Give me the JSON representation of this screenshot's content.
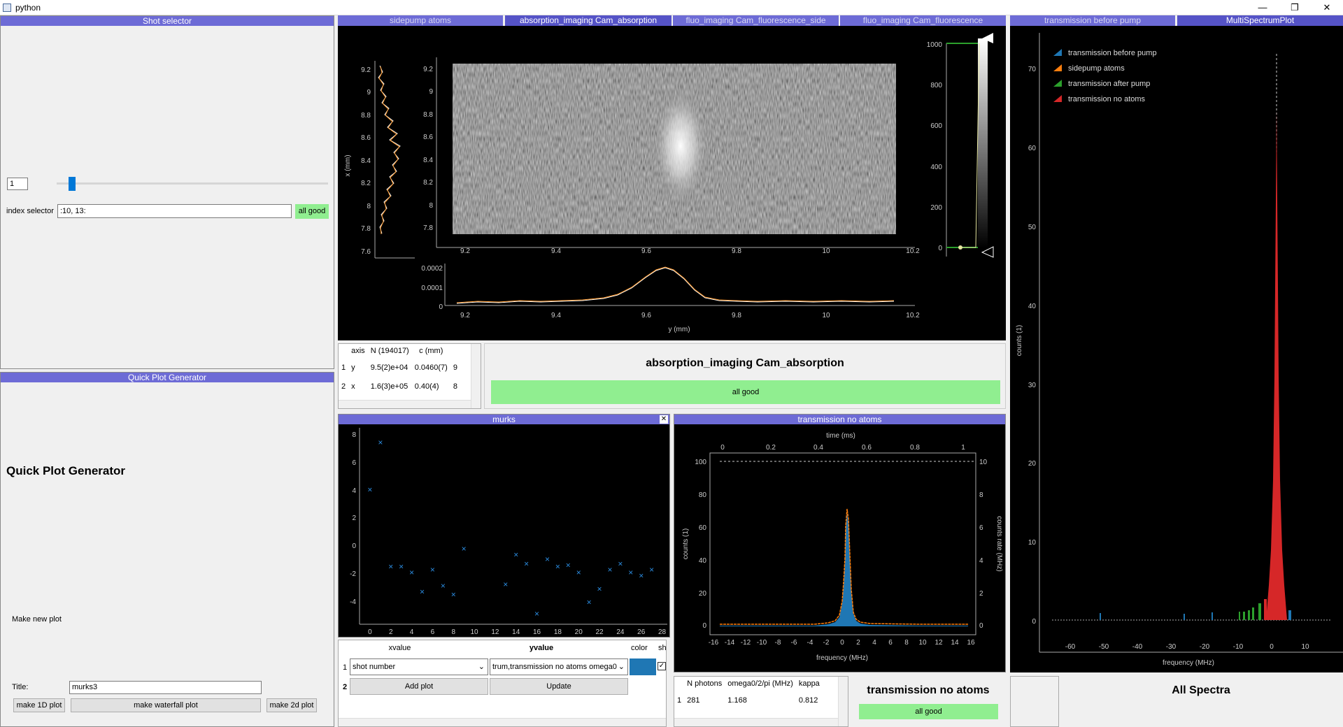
{
  "window": {
    "title": "python",
    "min": "—",
    "restore": "❐",
    "close": "✕"
  },
  "shot_selector": {
    "header": "Shot selector",
    "index_value": "1",
    "index_label": "index selector",
    "index_text": ":10, 13:",
    "status": "all good"
  },
  "quick_plot": {
    "header": "Quick Plot Generator",
    "title": "Quick Plot Generator",
    "make_new": "Make new plot",
    "title_label": "Title:",
    "title_value": "murks3",
    "btn_1d": "make 1D plot",
    "btn_waterfall": "make waterfall plot",
    "btn_2d": "make 2d plot"
  },
  "tabs_center": [
    "sidepump atoms",
    "absorption_imaging Cam_absorption",
    "fluo_imaging Cam_fluorescence_side",
    "fluo_imaging Cam_fluorescence"
  ],
  "tabs_right": [
    "transmission before pump",
    "MultiSpectrumPlot"
  ],
  "image_panel": {
    "title": "absorption_imaging Cam_absorption",
    "status": "all good",
    "x_label": "x (mm)",
    "y_label": "y (mm)",
    "left_ticks": [
      "9.2",
      "9",
      "8.8",
      "8.6",
      "8.4",
      "8.2",
      "8",
      "7.8",
      "7.6"
    ],
    "img_y_ticks": [
      "9.2",
      "9",
      "8.8",
      "8.6",
      "8.4",
      "8.2",
      "8",
      "7.8"
    ],
    "img_x_ticks": [
      "9.2",
      "9.4",
      "9.6",
      "9.8",
      "10",
      "10.2"
    ],
    "bottom_y_ticks": [
      "0.0002",
      "0.0001",
      "0"
    ],
    "hist_ticks": [
      "1000",
      "800",
      "600",
      "400",
      "200",
      "0"
    ],
    "table_headers": [
      "",
      "axis",
      "N (194017)",
      "c (mm)",
      ""
    ],
    "table_rows": [
      [
        "1",
        "y",
        "9.5(2)e+04",
        "0.0460(7)",
        "9"
      ],
      [
        "2",
        "x",
        "1.6(3)e+05",
        "0.40(4)",
        "8"
      ]
    ]
  },
  "murks": {
    "header": "murks",
    "close": "✕",
    "y_ticks": [
      "8",
      "6",
      "4",
      "2",
      "0",
      "-2",
      "-4"
    ],
    "x_ticks": [
      "0",
      "2",
      "4",
      "6",
      "8",
      "10",
      "12",
      "14",
      "16",
      "18",
      "20",
      "22",
      "24",
      "26",
      "28"
    ],
    "table_headers": [
      "",
      "xvalue",
      "yvalue",
      "color",
      "sh"
    ],
    "row1": {
      "num": "1",
      "x": "shot number",
      "y": "trum,transmission no atoms omega0"
    },
    "row2": {
      "num": "2",
      "add": "Add plot",
      "update": "Update"
    }
  },
  "transmission": {
    "header": "transmission no atoms",
    "title": "transmission no atoms",
    "status": "all good",
    "top_label": "time (ms)",
    "top_ticks": [
      "0",
      "0.2",
      "0.4",
      "0.6",
      "0.8",
      "1"
    ],
    "left_label": "counts (1)",
    "left_ticks": [
      "100",
      "80",
      "60",
      "40",
      "20",
      "0"
    ],
    "right_label": "counts rate (MHz)",
    "right_ticks": [
      "10",
      "8",
      "6",
      "4",
      "2",
      "0"
    ],
    "x_label": "frequency (MHz)",
    "x_ticks": [
      "-16",
      "-14",
      "-12",
      "-10",
      "-8",
      "-6",
      "-4",
      "-2",
      "0",
      "2",
      "4",
      "6",
      "8",
      "10",
      "12",
      "14",
      "16"
    ],
    "table_headers": [
      "",
      "N photons",
      "omega0/2/pi (MHz)",
      "kappa"
    ],
    "table_row": [
      "1",
      "281",
      "1.168",
      "0.812"
    ]
  },
  "multi": {
    "title": "All Spectra",
    "y_label": "counts (1)",
    "y_ticks": [
      "70",
      "60",
      "50",
      "40",
      "30",
      "20",
      "10",
      "0"
    ],
    "x_label": "frequency (MHz)",
    "x_ticks": [
      "-60",
      "-50",
      "-40",
      "-30",
      "-20",
      "-10",
      "0",
      "10"
    ],
    "legend": [
      {
        "name": "transmission before pump",
        "color": "#1f77b4"
      },
      {
        "name": "sidepump atoms",
        "color": "#ff7f0e"
      },
      {
        "name": "transmission after pump",
        "color": "#2ca02c"
      },
      {
        "name": "transmission no atoms",
        "color": "#d62728"
      }
    ]
  },
  "chart_data": [
    {
      "type": "scatter",
      "series": [
        {
          "name": "",
          "x": [
            0,
            1,
            2,
            3,
            4,
            5,
            6,
            7,
            8,
            9,
            13,
            14,
            15,
            16,
            17,
            18,
            19,
            20,
            21,
            22,
            23,
            24,
            25,
            26,
            27
          ],
          "y": [
            4.1,
            7.3,
            -1.1,
            -1.1,
            -1.5,
            -2.8,
            -1.3,
            -2.4,
            -3.0,
            0.1,
            -2.3,
            -0.3,
            -0.9,
            -4.3,
            -0.6,
            -1.1,
            -1.0,
            -1.5,
            -3.5,
            -2.6,
            -1.3,
            -0.9,
            -1.5,
            -1.7,
            -1.3
          ]
        }
      ],
      "xlim": [
        -1,
        28.5
      ],
      "ylim": [
        -5,
        8.3
      ]
    }
  ]
}
